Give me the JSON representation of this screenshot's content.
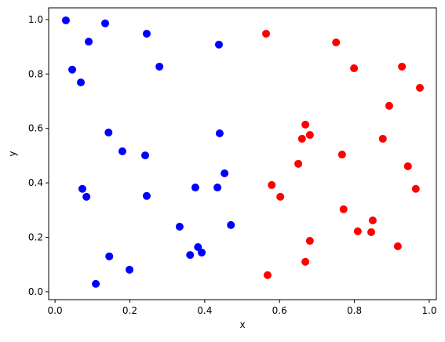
{
  "chart_data": {
    "type": "scatter",
    "xlabel": "x",
    "ylabel": "y",
    "xlim": [
      -0.017,
      1.019
    ],
    "ylim": [
      -0.029,
      1.043
    ],
    "xticks": [
      {
        "value": 0,
        "label": "0.0"
      },
      {
        "value": 0.2,
        "label": "0.2"
      },
      {
        "value": 0.4,
        "label": "0.4"
      },
      {
        "value": 0.6,
        "label": "0.6"
      },
      {
        "value": 0.8,
        "label": "0.8"
      },
      {
        "value": 1,
        "label": "1.0"
      }
    ],
    "yticks": [
      {
        "value": 0,
        "label": "0.0"
      },
      {
        "value": 0.2,
        "label": "0.2"
      },
      {
        "value": 0.4,
        "label": "0.4"
      },
      {
        "value": 0.6,
        "label": "0.6"
      },
      {
        "value": 0.8,
        "label": "0.8"
      },
      {
        "value": 1,
        "label": "1.0"
      }
    ],
    "series": [
      {
        "color": "#0000ff",
        "x": [
          0.029,
          0.134,
          0.245,
          0.09,
          0.438,
          0.046,
          0.279,
          0.069,
          0.143,
          0.44,
          0.18,
          0.241,
          0.453,
          0.073,
          0.084,
          0.245,
          0.375,
          0.434,
          0.333,
          0.47,
          0.382,
          0.361,
          0.392,
          0.145,
          0.199,
          0.109
        ],
        "y": [
          0.997,
          0.986,
          0.948,
          0.919,
          0.908,
          0.816,
          0.827,
          0.769,
          0.585,
          0.582,
          0.516,
          0.501,
          0.435,
          0.378,
          0.349,
          0.352,
          0.383,
          0.383,
          0.239,
          0.245,
          0.164,
          0.135,
          0.144,
          0.13,
          0.081,
          0.029
        ]
      },
      {
        "color": "#ff0000",
        "x": [
          0.564,
          0.751,
          0.799,
          0.927,
          0.975,
          0.893,
          0.669,
          0.66,
          0.681,
          0.876,
          0.767,
          0.65,
          0.943,
          0.579,
          0.602,
          0.964,
          0.771,
          0.849,
          0.809,
          0.845,
          0.681,
          0.916,
          0.669,
          0.568
        ],
        "y": [
          0.948,
          0.916,
          0.821,
          0.827,
          0.749,
          0.683,
          0.614,
          0.562,
          0.576,
          0.562,
          0.504,
          0.47,
          0.461,
          0.392,
          0.349,
          0.378,
          0.303,
          0.262,
          0.222,
          0.219,
          0.187,
          0.167,
          0.11,
          0.061
        ]
      }
    ]
  }
}
